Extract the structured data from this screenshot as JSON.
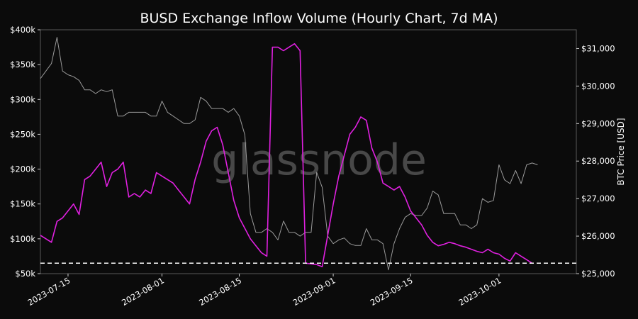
{
  "chart_data": {
    "type": "line",
    "title": "BUSD Exchange Inflow Volume (Hourly Chart, 7d MA)",
    "ylabel_right": "BTC Price [USD]",
    "watermark": "glassnode",
    "x_ticks": [
      "2023-07-15",
      "2023-08-01",
      "2023-08-15",
      "2023-09-01",
      "2023-09-15",
      "2023-10-01"
    ],
    "y_left_ticks": [
      "$50k",
      "$100k",
      "$150k",
      "$200k",
      "$250k",
      "$300k",
      "$350k",
      "$400k"
    ],
    "y_left_range": [
      50000,
      400000
    ],
    "y_right_ticks": [
      "$25,000",
      "$26,000",
      "$27,000",
      "$28,000",
      "$29,000",
      "$30,000",
      "$31,000"
    ],
    "y_right_range": [
      25000,
      31500
    ],
    "x_range": [
      "2023-07-10",
      "2023-10-15"
    ],
    "grid": false,
    "colors": {
      "background": "#0b0b0b",
      "inflow": "#e020e0",
      "price": "#9a9a9a",
      "reference": "#ffffff",
      "frame": "#5a5a5a"
    },
    "reference_line": {
      "value": 65000,
      "style": "dashed"
    },
    "series": [
      {
        "name": "BUSD Exchange Inflow Volume",
        "axis": "left",
        "points": [
          [
            "2023-07-10",
            105000
          ],
          [
            "2023-07-12",
            95000
          ],
          [
            "2023-07-13",
            125000
          ],
          [
            "2023-07-14",
            130000
          ],
          [
            "2023-07-15",
            140000
          ],
          [
            "2023-07-16",
            150000
          ],
          [
            "2023-07-17",
            135000
          ],
          [
            "2023-07-18",
            185000
          ],
          [
            "2023-07-19",
            190000
          ],
          [
            "2023-07-20",
            200000
          ],
          [
            "2023-07-21",
            210000
          ],
          [
            "2023-07-22",
            175000
          ],
          [
            "2023-07-23",
            195000
          ],
          [
            "2023-07-24",
            200000
          ],
          [
            "2023-07-25",
            210000
          ],
          [
            "2023-07-26",
            160000
          ],
          [
            "2023-07-27",
            165000
          ],
          [
            "2023-07-28",
            160000
          ],
          [
            "2023-07-29",
            170000
          ],
          [
            "2023-07-30",
            165000
          ],
          [
            "2023-07-31",
            195000
          ],
          [
            "2023-08-01",
            190000
          ],
          [
            "2023-08-02",
            185000
          ],
          [
            "2023-08-03",
            180000
          ],
          [
            "2023-08-04",
            170000
          ],
          [
            "2023-08-05",
            160000
          ],
          [
            "2023-08-06",
            150000
          ],
          [
            "2023-08-07",
            185000
          ],
          [
            "2023-08-08",
            210000
          ],
          [
            "2023-08-09",
            240000
          ],
          [
            "2023-08-10",
            255000
          ],
          [
            "2023-08-11",
            260000
          ],
          [
            "2023-08-12",
            235000
          ],
          [
            "2023-08-13",
            195000
          ],
          [
            "2023-08-14",
            155000
          ],
          [
            "2023-08-15",
            130000
          ],
          [
            "2023-08-16",
            115000
          ],
          [
            "2023-08-17",
            100000
          ],
          [
            "2023-08-18",
            90000
          ],
          [
            "2023-08-19",
            80000
          ],
          [
            "2023-08-20",
            75000
          ],
          [
            "2023-08-21",
            375000
          ],
          [
            "2023-08-22",
            375000
          ],
          [
            "2023-08-23",
            370000
          ],
          [
            "2023-08-24",
            375000
          ],
          [
            "2023-08-25",
            380000
          ],
          [
            "2023-08-26",
            370000
          ],
          [
            "2023-08-27",
            65000
          ],
          [
            "2023-08-28",
            64000
          ],
          [
            "2023-08-29",
            63000
          ],
          [
            "2023-08-30",
            60000
          ],
          [
            "2023-08-31",
            105000
          ],
          [
            "2023-09-01",
            150000
          ],
          [
            "2023-09-02",
            190000
          ],
          [
            "2023-09-03",
            220000
          ],
          [
            "2023-09-04",
            250000
          ],
          [
            "2023-09-05",
            260000
          ],
          [
            "2023-09-06",
            275000
          ],
          [
            "2023-09-07",
            270000
          ],
          [
            "2023-09-08",
            230000
          ],
          [
            "2023-09-09",
            210000
          ],
          [
            "2023-09-10",
            180000
          ],
          [
            "2023-09-11",
            175000
          ],
          [
            "2023-09-12",
            170000
          ],
          [
            "2023-09-13",
            175000
          ],
          [
            "2023-09-14",
            160000
          ],
          [
            "2023-09-15",
            140000
          ],
          [
            "2023-09-16",
            130000
          ],
          [
            "2023-09-17",
            120000
          ],
          [
            "2023-09-18",
            105000
          ],
          [
            "2023-09-19",
            95000
          ],
          [
            "2023-09-20",
            90000
          ],
          [
            "2023-09-21",
            92000
          ],
          [
            "2023-09-22",
            95000
          ],
          [
            "2023-09-23",
            93000
          ],
          [
            "2023-09-24",
            90000
          ],
          [
            "2023-09-25",
            88000
          ],
          [
            "2023-09-26",
            85000
          ],
          [
            "2023-09-27",
            82000
          ],
          [
            "2023-09-28",
            80000
          ],
          [
            "2023-09-29",
            85000
          ],
          [
            "2023-09-30",
            80000
          ],
          [
            "2023-10-01",
            78000
          ],
          [
            "2023-10-02",
            72000
          ],
          [
            "2023-10-03",
            68000
          ],
          [
            "2023-10-04",
            80000
          ],
          [
            "2023-10-05",
            75000
          ],
          [
            "2023-10-06",
            70000
          ],
          [
            "2023-10-07",
            65000
          ]
        ]
      },
      {
        "name": "BTC Price",
        "axis": "right",
        "points": [
          [
            "2023-07-10",
            30200
          ],
          [
            "2023-07-11",
            30400
          ],
          [
            "2023-07-12",
            30600
          ],
          [
            "2023-07-13",
            31300
          ],
          [
            "2023-07-14",
            30400
          ],
          [
            "2023-07-15",
            30300
          ],
          [
            "2023-07-16",
            30250
          ],
          [
            "2023-07-17",
            30150
          ],
          [
            "2023-07-18",
            29900
          ],
          [
            "2023-07-19",
            29900
          ],
          [
            "2023-07-20",
            29800
          ],
          [
            "2023-07-21",
            29900
          ],
          [
            "2023-07-22",
            29850
          ],
          [
            "2023-07-23",
            29900
          ],
          [
            "2023-07-24",
            29200
          ],
          [
            "2023-07-25",
            29200
          ],
          [
            "2023-07-26",
            29300
          ],
          [
            "2023-07-27",
            29300
          ],
          [
            "2023-07-28",
            29300
          ],
          [
            "2023-07-29",
            29300
          ],
          [
            "2023-07-30",
            29200
          ],
          [
            "2023-07-31",
            29200
          ],
          [
            "2023-08-01",
            29600
          ],
          [
            "2023-08-02",
            29300
          ],
          [
            "2023-08-03",
            29200
          ],
          [
            "2023-08-04",
            29100
          ],
          [
            "2023-08-05",
            29000
          ],
          [
            "2023-08-06",
            29000
          ],
          [
            "2023-08-07",
            29100
          ],
          [
            "2023-08-08",
            29700
          ],
          [
            "2023-08-09",
            29600
          ],
          [
            "2023-08-10",
            29400
          ],
          [
            "2023-08-11",
            29400
          ],
          [
            "2023-08-12",
            29400
          ],
          [
            "2023-08-13",
            29300
          ],
          [
            "2023-08-14",
            29400
          ],
          [
            "2023-08-15",
            29200
          ],
          [
            "2023-08-16",
            28700
          ],
          [
            "2023-08-17",
            26600
          ],
          [
            "2023-08-18",
            26100
          ],
          [
            "2023-08-19",
            26100
          ],
          [
            "2023-08-20",
            26200
          ],
          [
            "2023-08-21",
            26100
          ],
          [
            "2023-08-22",
            25900
          ],
          [
            "2023-08-23",
            26400
          ],
          [
            "2023-08-24",
            26100
          ],
          [
            "2023-08-25",
            26100
          ],
          [
            "2023-08-26",
            26000
          ],
          [
            "2023-08-27",
            26100
          ],
          [
            "2023-08-28",
            26100
          ],
          [
            "2023-08-29",
            27700
          ],
          [
            "2023-08-30",
            27300
          ],
          [
            "2023-08-31",
            26000
          ],
          [
            "2023-09-01",
            25800
          ],
          [
            "2023-09-02",
            25900
          ],
          [
            "2023-09-03",
            25950
          ],
          [
            "2023-09-04",
            25800
          ],
          [
            "2023-09-05",
            25750
          ],
          [
            "2023-09-06",
            25750
          ],
          [
            "2023-09-07",
            26200
          ],
          [
            "2023-09-08",
            25900
          ],
          [
            "2023-09-09",
            25900
          ],
          [
            "2023-09-10",
            25800
          ],
          [
            "2023-09-11",
            25100
          ],
          [
            "2023-09-12",
            25800
          ],
          [
            "2023-09-13",
            26200
          ],
          [
            "2023-09-14",
            26500
          ],
          [
            "2023-09-15",
            26600
          ],
          [
            "2023-09-16",
            26550
          ],
          [
            "2023-09-17",
            26550
          ],
          [
            "2023-09-18",
            26750
          ],
          [
            "2023-09-19",
            27200
          ],
          [
            "2023-09-20",
            27100
          ],
          [
            "2023-09-21",
            26600
          ],
          [
            "2023-09-22",
            26600
          ],
          [
            "2023-09-23",
            26600
          ],
          [
            "2023-09-24",
            26300
          ],
          [
            "2023-09-25",
            26300
          ],
          [
            "2023-09-26",
            26200
          ],
          [
            "2023-09-27",
            26300
          ],
          [
            "2023-09-28",
            27000
          ],
          [
            "2023-09-29",
            26900
          ],
          [
            "2023-09-30",
            26950
          ],
          [
            "2023-10-01",
            27900
          ],
          [
            "2023-10-02",
            27500
          ],
          [
            "2023-10-03",
            27400
          ],
          [
            "2023-10-04",
            27750
          ],
          [
            "2023-10-05",
            27400
          ],
          [
            "2023-10-06",
            27900
          ],
          [
            "2023-10-07",
            27950
          ],
          [
            "2023-10-08",
            27900
          ]
        ]
      }
    ]
  }
}
